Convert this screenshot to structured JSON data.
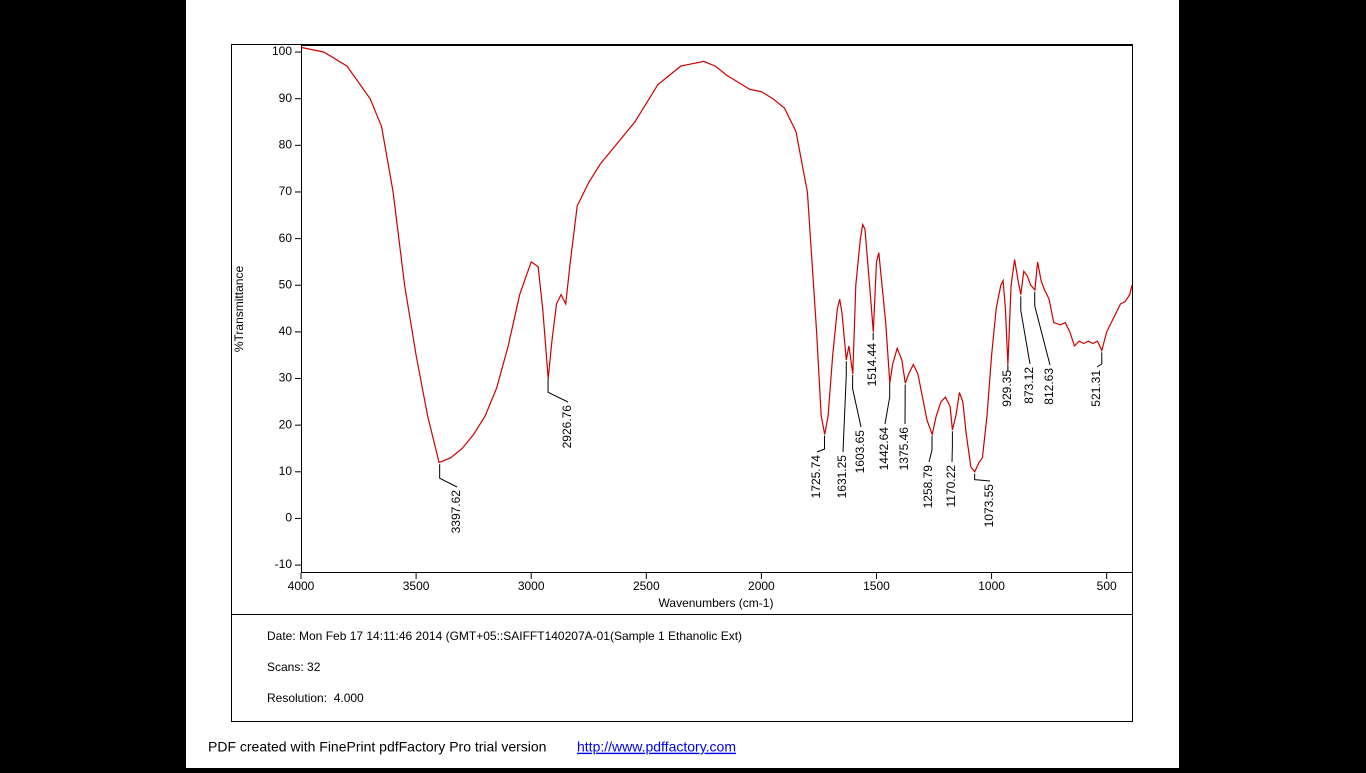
{
  "chart_data": {
    "type": "line",
    "xlabel": "Wavenumbers (cm-1)",
    "ylabel": "%Transmittance",
    "xlim": [
      4000,
      390
    ],
    "ylim": [
      -11.7,
      101.3
    ],
    "xticks": [
      4000,
      3500,
      3000,
      2500,
      2000,
      1500,
      1000,
      500
    ],
    "yticks": [
      100,
      90,
      80,
      70,
      60,
      50,
      40,
      30,
      20,
      10,
      0,
      -10
    ],
    "color": "#cc0000",
    "x": [
      4000,
      3900,
      3800,
      3700,
      3650,
      3600,
      3550,
      3500,
      3450,
      3400,
      3350,
      3300,
      3250,
      3200,
      3150,
      3100,
      3050,
      3000,
      2970,
      2950,
      2926,
      2910,
      2890,
      2870,
      2850,
      2830,
      2800,
      2750,
      2700,
      2650,
      2600,
      2550,
      2500,
      2450,
      2400,
      2350,
      2300,
      2250,
      2200,
      2150,
      2100,
      2050,
      2000,
      1950,
      1900,
      1850,
      1800,
      1760,
      1740,
      1725,
      1710,
      1690,
      1670,
      1660,
      1650,
      1631,
      1620,
      1603,
      1590,
      1570,
      1560,
      1550,
      1530,
      1514,
      1500,
      1490,
      1480,
      1460,
      1442,
      1430,
      1410,
      1390,
      1375,
      1360,
      1340,
      1320,
      1300,
      1280,
      1258,
      1240,
      1220,
      1200,
      1180,
      1170,
      1155,
      1140,
      1125,
      1110,
      1090,
      1073,
      1055,
      1040,
      1020,
      1000,
      980,
      960,
      950,
      940,
      929,
      915,
      900,
      885,
      873,
      860,
      845,
      830,
      812,
      800,
      785,
      770,
      750,
      730,
      700,
      680,
      660,
      640,
      620,
      600,
      580,
      560,
      540,
      521,
      500,
      470,
      440,
      420,
      400,
      390
    ],
    "values": [
      101,
      100,
      97,
      90,
      84,
      70,
      50,
      35,
      22,
      12,
      13,
      15,
      18,
      22,
      28,
      37,
      48,
      55,
      54,
      45,
      30,
      38,
      46,
      48,
      46,
      55,
      67,
      72,
      76,
      79,
      82,
      85,
      89,
      93,
      95,
      97,
      97.5,
      98,
      97,
      95,
      93.5,
      92,
      91.5,
      90,
      88,
      83,
      70,
      40,
      22,
      18,
      22,
      35,
      45,
      47,
      44,
      34,
      37,
      31,
      50,
      60,
      63,
      62,
      50,
      40,
      55,
      57,
      52,
      42,
      29,
      33,
      36.5,
      34,
      29,
      31,
      33,
      31,
      26,
      21,
      18,
      22,
      25,
      26,
      24,
      19,
      22,
      27,
      25,
      18,
      11,
      10,
      12,
      13,
      22,
      35,
      45,
      50,
      51,
      45,
      33,
      50,
      55.5,
      51,
      48,
      53,
      52,
      50,
      49,
      55,
      51,
      49,
      47,
      42,
      41.5,
      42,
      40,
      37,
      38,
      37.5,
      38,
      37.5,
      38,
      36,
      40,
      43,
      46,
      46.5,
      48,
      50
    ],
    "peaks": [
      3397.62,
      2926.76,
      1725.74,
      1631.25,
      1603.65,
      1514.44,
      1442.64,
      1375.46,
      1258.79,
      1170.22,
      1073.55,
      929.35,
      873.12,
      812.63,
      521.31
    ]
  },
  "info": [
    "Date: Mon Feb 17 14:11:46 2014 (GMT+05::SAIFFT140207A-01(Sample 1 Ethanolic Ext)",
    "Scans: 32",
    "Resolution:  4.000"
  ],
  "footer": {
    "text": "PDF created with FinePrint pdfFactory Pro trial version",
    "link": "http://www.pdffactory.com"
  }
}
